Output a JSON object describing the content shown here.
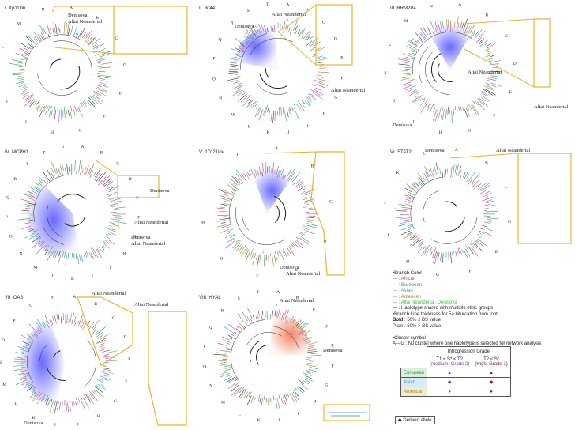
{
  "panels": [
    {
      "numeral": "I",
      "name": "Xp11Dn",
      "labels": {
        "denisova": "Denisova",
        "altai": "Altai Neandertal"
      },
      "clusters": [
        "A",
        "B",
        "C",
        "D",
        "E",
        "F",
        "G",
        "H",
        "I",
        "J",
        "K",
        "L",
        "M",
        "N"
      ],
      "inset_scale": "0.0002"
    },
    {
      "numeral": "II",
      "name": "8q44",
      "labels": {
        "denisova": "Denisova",
        "altai": "Altai Neandertal",
        "altai2": "Altai Neandertal"
      },
      "clusters": [
        "A",
        "B",
        "C",
        "D",
        "E",
        "F",
        "G",
        "H",
        "I",
        "J",
        "K",
        "L",
        "M",
        "N",
        "O",
        "P",
        "Q",
        "R",
        "S",
        "T"
      ],
      "inset_scale": "0.0001"
    },
    {
      "numeral": "III",
      "name": "RRM2P4",
      "labels": {
        "denisova": "Denisova",
        "altai": "Altai Neandertal",
        "altai2": "Altai Neandertal"
      },
      "clusters": [
        "A",
        "B",
        "C",
        "D",
        "E",
        "F",
        "G",
        "H",
        "I",
        "J",
        "K",
        "L",
        "M",
        "N"
      ],
      "inset_scale": "0.0001"
    },
    {
      "numeral": "IV",
      "name": "MCPH1",
      "labels": {
        "denisova": "Denisova",
        "altai": "Altai Neandertal",
        "denisova2": "Denisova",
        "altai2": "Altai Neandertal"
      },
      "clusters": [
        "A",
        "B",
        "C",
        "D",
        "E",
        "F",
        "G",
        "H",
        "I",
        "J",
        "K",
        "L",
        "M",
        "N",
        "O",
        "P",
        "Q",
        "R",
        "S",
        "T",
        "U"
      ],
      "inset_scale": "0.001"
    },
    {
      "numeral": "V",
      "name": "17q21inv",
      "labels": {
        "denisova": "Denisova",
        "altai": "Altai Neandertal"
      },
      "clusters": [
        "A",
        "B",
        "C",
        "D",
        "E",
        "F",
        "G",
        "H",
        "I",
        "J"
      ],
      "inset_scale": "0.0001"
    },
    {
      "numeral": "VI",
      "name": "STAT2",
      "labels": {
        "denisova": "Denisova",
        "altai": "Altai Neandertal"
      },
      "clusters": [
        "A",
        "B",
        "C",
        "D",
        "E",
        "F",
        "G",
        "H",
        "I",
        "J",
        "K",
        "L"
      ],
      "inset_scale": "0.0001"
    },
    {
      "numeral": "VII",
      "name": "OAS",
      "labels": {
        "denisova": "Denisova",
        "altai": "Altai Neandertal",
        "altai2": "Altai Neandertal"
      },
      "clusters": [
        "A",
        "B",
        "C",
        "D",
        "E",
        "F",
        "G",
        "H",
        "I",
        "J",
        "K",
        "L",
        "M",
        "N",
        "O",
        "P",
        "Q",
        "R"
      ],
      "inset_scale": "0.0001"
    },
    {
      "numeral": "VIII",
      "name": "HYAL",
      "labels": {
        "denisova": "Denisova",
        "altai": "Altai Neandertal"
      },
      "clusters": [
        "A",
        "B",
        "C",
        "D",
        "E",
        "F",
        "G",
        "H",
        "I",
        "J",
        "K",
        "L",
        "M",
        "N",
        "O",
        "P",
        "Q",
        "R",
        "S",
        "T"
      ],
      "inset_scale": "0.0001"
    }
  ],
  "legend": {
    "branch_color_title": "•Branch Color",
    "african": ": African",
    "european": ": European",
    "asian": ": Asian",
    "american": ": American",
    "archaic": ": Altai Neandertal, Denisova",
    "shared": ": Haplotype shared with multiple ethic groups",
    "thickness": "•Branch Line thickness for 5a bifurcation from root",
    "bold_key": "Bold",
    "bold_rule": ": 50% ≤ BS value",
    "plain_rule": "Plain : 50% > BS value",
    "cluster_title": "•Cluster symbol",
    "cluster_desc": "A – U : NJ cluster where one haplotype is selected for network analysis",
    "grade_title": "Introgression Grade",
    "col1_line1": "T1 ≤ S* < T2",
    "col1_line2": "(medium, Grade 2)",
    "col2_line1": "T2 ≤ S*",
    "col2_line2": "(High, Grade 1)",
    "rows": [
      "European",
      "Asian",
      "American"
    ],
    "derived": "◆ Derived allele",
    "colors": {
      "african": "#d13a8f",
      "european": "#2e9d4f",
      "asian": "#2a9fd6",
      "american": "#a08a2a",
      "archaic": "#3cc23c",
      "shared": "#333333"
    }
  }
}
